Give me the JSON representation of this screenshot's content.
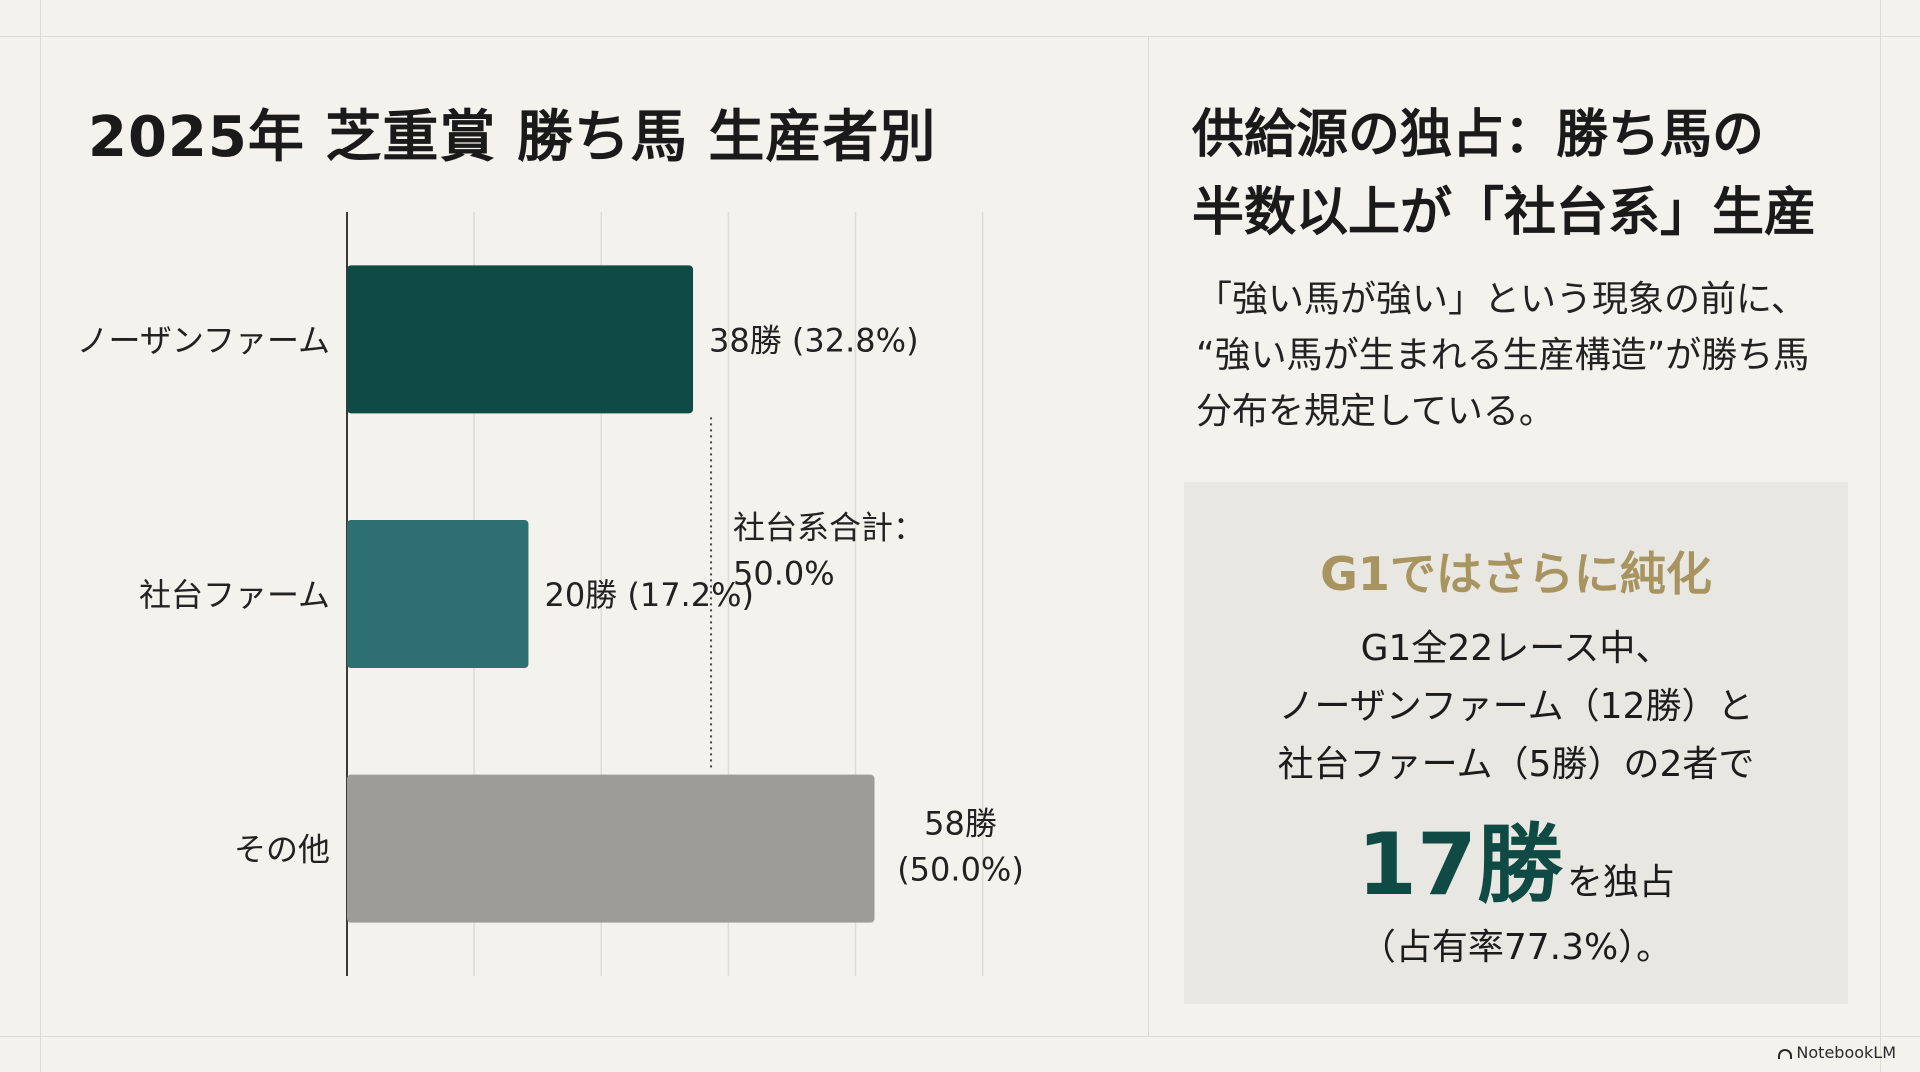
{
  "chart_data": {
    "type": "bar",
    "orientation": "horizontal",
    "title": "2025年 芝重賞 勝ち馬 生産者別",
    "categories": [
      "ノーザンファーム",
      "社台ファーム",
      "その他"
    ],
    "values": [
      38,
      20,
      58
    ],
    "value_labels": [
      "38勝 (32.8%)",
      "20勝 (17.2%)",
      "58勝 (50.0%)"
    ],
    "value_labels_lines": [
      [
        "38勝 (32.8%)"
      ],
      [
        "20勝 (17.2%)"
      ],
      [
        "58勝",
        "(50.0%)"
      ]
    ],
    "percentages": [
      32.8,
      17.2,
      50.0
    ],
    "colors": [
      "#0f4a45",
      "#2e6f72",
      "#9e9c97"
    ],
    "xlim": [
      0,
      100
    ],
    "grid": true,
    "legend": "none",
    "annotation": {
      "text_lines": [
        "社台系合計：",
        "50.0%"
      ],
      "spans_categories": [
        "ノーザンファーム",
        "社台ファーム"
      ]
    }
  },
  "right_panel": {
    "title_lines": [
      "供給源の独占：勝ち馬の",
      "半数以上が「社台系」生産"
    ],
    "description_lines": [
      "「強い馬が強い」という現象の前に、",
      "“強い馬が生まれる生産構造”が勝ち馬",
      "分布を規定している。"
    ],
    "g1_box": {
      "title": "G1ではさらに純化",
      "lines": [
        "G1全22レース中、",
        "ノーザンファーム（12勝）と",
        "社台ファーム（5勝）の2者で"
      ],
      "big_value": "17勝",
      "big_suffix": "を独占",
      "share_text": "（占有率77.3%）。",
      "title_color": "#a89460",
      "big_value_color": "#0f4a45"
    }
  },
  "brand": {
    "name": "NotebookLM"
  }
}
